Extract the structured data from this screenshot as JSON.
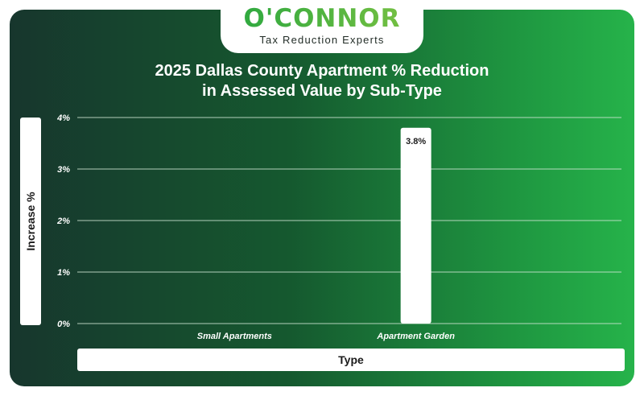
{
  "brand": {
    "name": "O'CONNOR",
    "tagline": "Tax Reduction Experts"
  },
  "chart_data": {
    "type": "bar",
    "title_line1": "2025 Dallas County Apartment % Reduction",
    "title_line2": "in Assessed Value by Sub-Type",
    "xlabel": "Type",
    "ylabel": "Increase %",
    "categories": [
      "Small Apartments",
      "Apartment Garden"
    ],
    "values": [
      0,
      3.8
    ],
    "data_labels": [
      "",
      "3.8%"
    ],
    "yticks": [
      0,
      1,
      2,
      3,
      4
    ],
    "ytick_labels": [
      "0%",
      "1%",
      "2%",
      "3%",
      "4%"
    ],
    "ylim": [
      0,
      4
    ],
    "grid": true
  },
  "colors": {
    "bar": "#ffffff",
    "grid": "#cfe6d4",
    "axis_text": "#ffffff",
    "label_text": "#1b1b1b",
    "brand_green": "#27a63f"
  }
}
